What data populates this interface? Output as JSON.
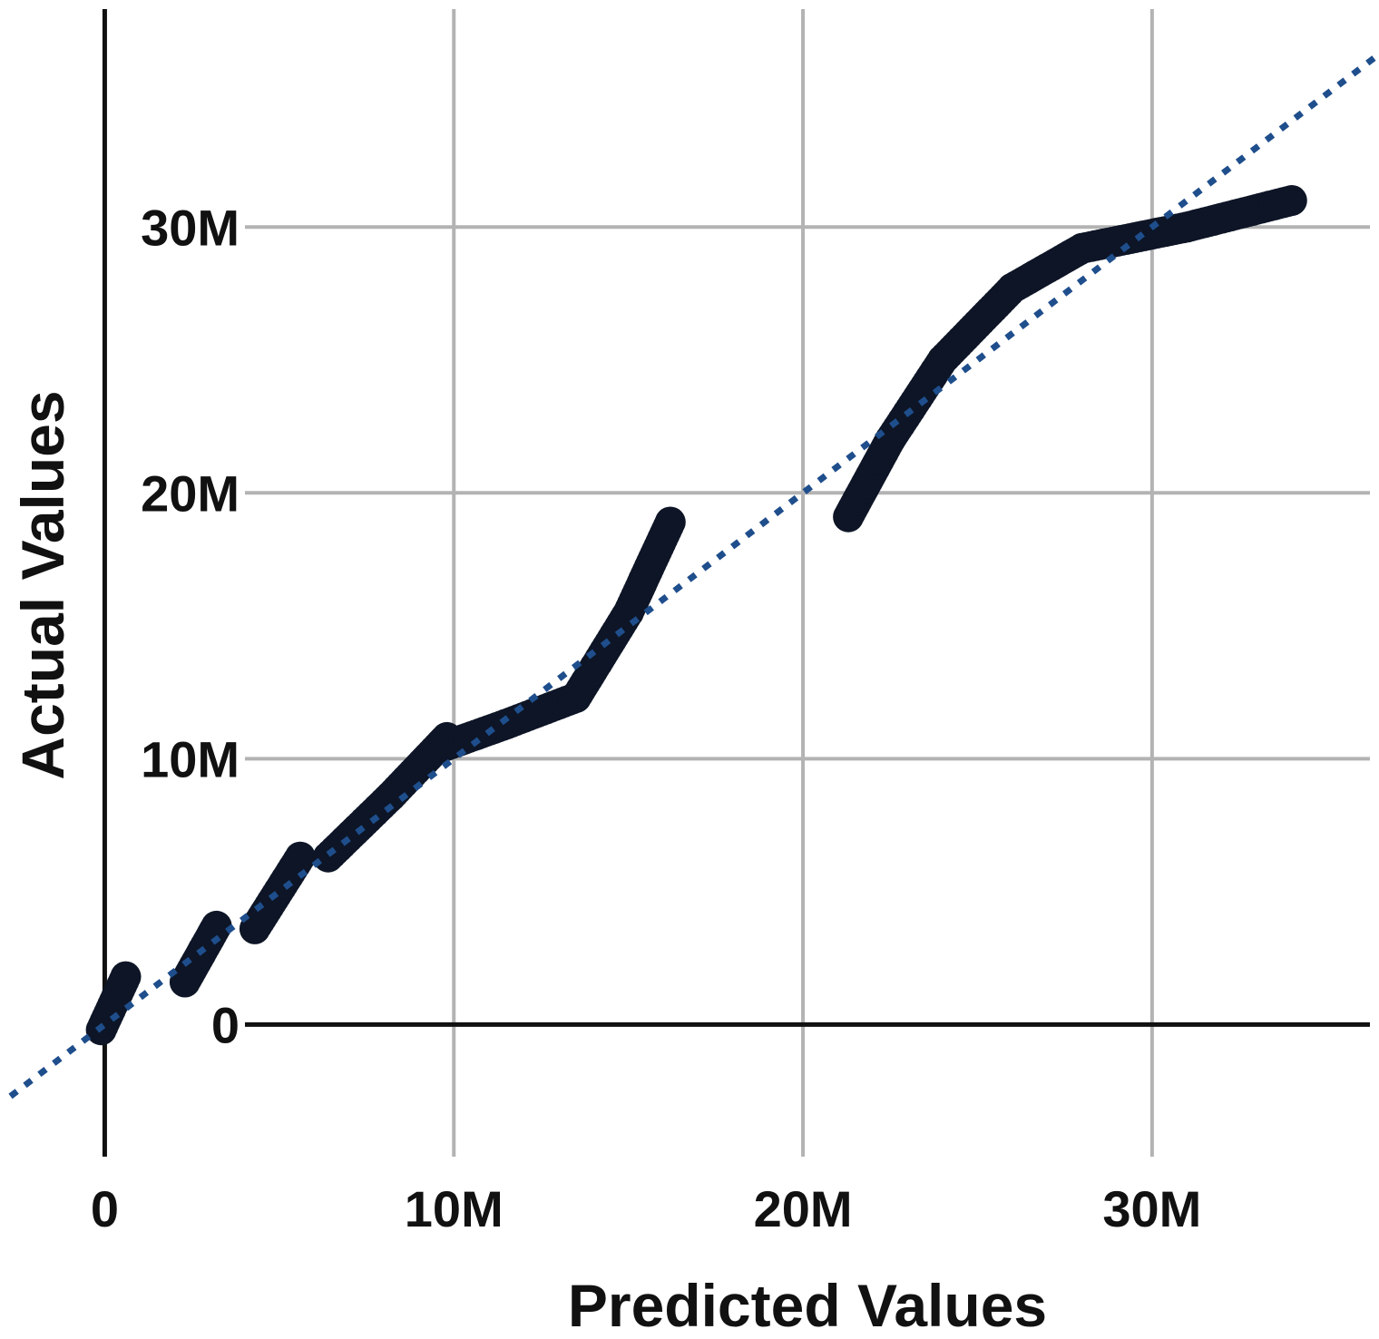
{
  "chart_data": {
    "type": "scatter",
    "title": "",
    "xlabel": "Predicted Values",
    "ylabel": "Actual Values",
    "xlim": [
      -3000000,
      36500000
    ],
    "ylim": [
      -4800000,
      38200000
    ],
    "x_ticks": [
      {
        "value": 0,
        "label": "0"
      },
      {
        "value": 10000000,
        "label": "10M"
      },
      {
        "value": 20000000,
        "label": "20M"
      },
      {
        "value": 30000000,
        "label": "30M"
      }
    ],
    "y_ticks": [
      {
        "value": 0,
        "label": "0"
      },
      {
        "value": 10000000,
        "label": "10M"
      },
      {
        "value": 20000000,
        "label": "20M"
      },
      {
        "value": 30000000,
        "label": "30M"
      }
    ],
    "grid": true,
    "reference_line": {
      "style": "dotted",
      "color": "#1f4e8c",
      "x": [
        -2700000,
        36400000
      ],
      "y": [
        -2700000,
        36400000
      ]
    },
    "point_color": "#0d1526",
    "segments": [
      {
        "x": [
          -100000,
          600000
        ],
        "y": [
          -200000,
          1800000
        ]
      },
      {
        "x": [
          2300000,
          3200000
        ],
        "y": [
          1600000,
          3700000
        ]
      },
      {
        "x": [
          4300000,
          5600000
        ],
        "y": [
          3600000,
          6300000
        ]
      },
      {
        "x": [
          6400000,
          8200000
        ],
        "y": [
          6300000,
          8600000
        ]
      },
      {
        "x": [
          8200000,
          9800000
        ],
        "y": [
          8600000,
          10800000
        ]
      },
      {
        "x": [
          9800000,
          11500000
        ],
        "y": [
          10500000,
          11300000
        ]
      },
      {
        "x": [
          11500000,
          13500000
        ],
        "y": [
          11300000,
          12300000
        ]
      },
      {
        "x": [
          13500000,
          15000000
        ],
        "y": [
          12300000,
          15500000
        ]
      },
      {
        "x": [
          15000000,
          16200000
        ],
        "y": [
          15500000,
          18900000
        ]
      },
      {
        "x": [
          21300000,
          22500000
        ],
        "y": [
          19100000,
          22000000
        ]
      },
      {
        "x": [
          22500000,
          24000000
        ],
        "y": [
          22000000,
          25000000
        ]
      },
      {
        "x": [
          24000000,
          26000000
        ],
        "y": [
          25000000,
          27700000
        ]
      },
      {
        "x": [
          26000000,
          28000000
        ],
        "y": [
          27700000,
          29200000
        ]
      },
      {
        "x": [
          28000000,
          31000000
        ],
        "y": [
          29200000,
          30000000
        ]
      },
      {
        "x": [
          31000000,
          34000000
        ],
        "y": [
          30000000,
          31000000
        ]
      }
    ]
  }
}
